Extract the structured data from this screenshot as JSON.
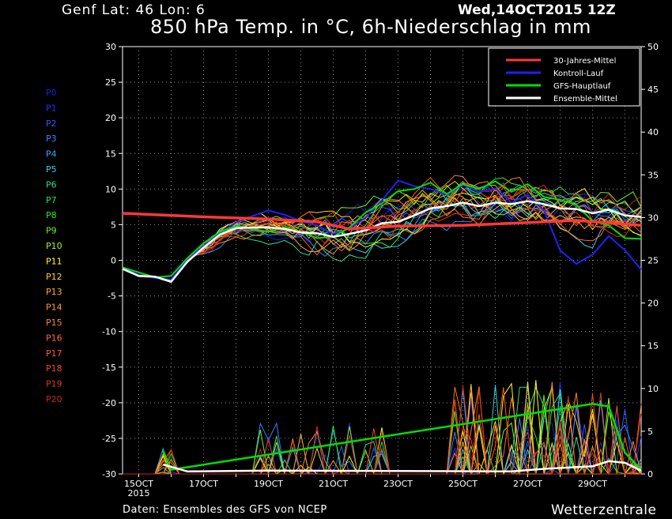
{
  "header": {
    "location": "Genf  Lat: 46 Lon: 6",
    "date": "Wed,14OCT2015 12Z",
    "title": "850 hPa Temp. in °C, 6h-Niederschlag in mm",
    "footer": "Daten: Ensembles des GFS von NCEP",
    "brand": "Wetterzentrale"
  },
  "colors": {
    "background": "#000000",
    "grid": "#909090",
    "clim": "#ff3838",
    "control": "#2020ff",
    "main": "#00e000",
    "mean": "#ffffff"
  },
  "members": [
    {
      "label": "P0",
      "color": "#2020d8"
    },
    {
      "label": "P1",
      "color": "#2030ff"
    },
    {
      "label": "P2",
      "color": "#2a5cff"
    },
    {
      "label": "P3",
      "color": "#2f86ff"
    },
    {
      "label": "P4",
      "color": "#30aaff"
    },
    {
      "label": "P5",
      "color": "#35d0e8"
    },
    {
      "label": "P6",
      "color": "#30d890"
    },
    {
      "label": "P7",
      "color": "#20e060"
    },
    {
      "label": "P8",
      "color": "#30e830"
    },
    {
      "label": "P9",
      "color": "#70f020"
    },
    {
      "label": "P10",
      "color": "#a8f020"
    },
    {
      "label": "P11",
      "color": "#ffff20"
    },
    {
      "label": "P12",
      "color": "#ffd020"
    },
    {
      "label": "P13",
      "color": "#ffb020"
    },
    {
      "label": "P14",
      "color": "#ff9828"
    },
    {
      "label": "P15",
      "color": "#ff8030"
    },
    {
      "label": "P16",
      "color": "#ff6a28"
    },
    {
      "label": "P17",
      "color": "#ff5a20"
    },
    {
      "label": "P18",
      "color": "#f04818"
    },
    {
      "label": "P19",
      "color": "#e03818"
    },
    {
      "label": "P20",
      "color": "#c82818"
    }
  ],
  "chart_data": {
    "type": "line",
    "title": "850 hPa Temp. in °C, 6h-Niederschlag in mm",
    "x_ticks": [
      "15OCT",
      "17OCT",
      "19OCT",
      "21OCT",
      "23OCT",
      "25OCT",
      "27OCT",
      "29OCT"
    ],
    "x_tick_sub": "2015",
    "x_range_days": [
      14.5,
      30.5
    ],
    "step_hours": 6,
    "ylim_left": [
      -30,
      30
    ],
    "yticks_left": [
      -30,
      -25,
      -20,
      -15,
      -10,
      -5,
      0,
      5,
      10,
      15,
      20,
      25,
      30
    ],
    "ylabel_left": "",
    "ylim_right": [
      0,
      50
    ],
    "yticks_right": [
      0,
      5,
      10,
      15,
      20,
      25,
      30,
      35,
      40,
      45,
      50
    ],
    "ylabel_right": "",
    "grid": true,
    "legend_position": "top-right",
    "legend": [
      "30-Jahres-Mittel",
      "Kontroll-Lauf",
      "GFS-Hauptlauf",
      "Ensemble-Mittel"
    ],
    "climate_mean": {
      "x": [
        14.5,
        17,
        19,
        20.5,
        21.5,
        23,
        25,
        27,
        28.5,
        30.5
      ],
      "y": [
        6.6,
        6.1,
        5.8,
        5.4,
        4.4,
        4.8,
        4.9,
        5.3,
        5.6,
        4.9
      ]
    },
    "ensemble_mean": {
      "x": [
        14.5,
        15,
        15.5,
        16,
        16.5,
        17,
        17.5,
        18,
        18.5,
        19,
        19.5,
        20,
        20.5,
        21,
        21.5,
        22,
        22.5,
        23,
        23.5,
        24,
        24.5,
        25,
        25.5,
        26,
        26.5,
        27,
        27.5,
        28,
        28.5,
        29,
        29.5,
        30,
        30.5
      ],
      "y": [
        -1.2,
        -2.2,
        -2.3,
        -3.0,
        -0.2,
        1.8,
        3.6,
        4.5,
        4.6,
        4.6,
        4.4,
        3.9,
        3.8,
        3.3,
        3.7,
        4.2,
        5.2,
        5.4,
        6.3,
        7.3,
        7.6,
        8.1,
        7.6,
        8.1,
        7.9,
        8.3,
        7.9,
        7.3,
        7.2,
        6.6,
        7.1,
        6.3,
        6.1
      ]
    },
    "control_run": {
      "x": [
        14.5,
        15,
        15.5,
        16,
        16.5,
        17,
        17.5,
        18,
        18.5,
        19,
        19.5,
        20,
        20.5,
        21,
        21.5,
        22,
        22.5,
        23,
        23.5,
        24,
        24.5,
        25,
        25.5,
        26,
        26.5,
        27,
        27.5,
        28,
        28.5,
        29,
        29.5,
        30,
        30.5
      ],
      "y": [
        -1.1,
        -2.0,
        -2.5,
        -2.7,
        0.1,
        2.0,
        3.8,
        5.3,
        6.2,
        7.0,
        6.4,
        5.5,
        4.9,
        3.7,
        4.4,
        6.0,
        8.4,
        11.2,
        10.4,
        10.0,
        9.2,
        10.6,
        9.6,
        10.1,
        8.1,
        9.2,
        7.0,
        1.4,
        -0.5,
        0.8,
        3.4,
        1.4,
        -1.3
      ]
    },
    "main_run": {
      "x": [
        14.5,
        15,
        15.5,
        16,
        16.5,
        17,
        17.5,
        18,
        18.5,
        19,
        19.5,
        20,
        20.5,
        21,
        21.5,
        22,
        22.5,
        23,
        23.5,
        24,
        24.5,
        25,
        25.5,
        26,
        26.5,
        27,
        27.5,
        28,
        28.5,
        29,
        29.5,
        30,
        30.5
      ],
      "y": [
        -1.0,
        -1.7,
        -2.4,
        -2.2,
        0.3,
        2.4,
        4.0,
        4.8,
        4.4,
        4.0,
        4.6,
        4.0,
        3.1,
        3.3,
        4.6,
        6.7,
        8.0,
        9.7,
        10.0,
        10.9,
        9.3,
        10.7,
        10.0,
        11.1,
        9.6,
        10.7,
        8.9,
        8.5,
        7.8,
        5.5,
        4.9,
        3.1,
        3.0
      ]
    },
    "precip_main_mm": {
      "x": [
        15.75,
        16,
        29,
        29.5,
        30,
        30.5
      ],
      "y": [
        2.7,
        0.5,
        8.2,
        7.9,
        2.5,
        0.5
      ]
    },
    "precip_mean_mm": {
      "x": [
        15.75,
        16.5,
        19,
        26.5,
        27.5,
        29,
        29.5,
        30,
        30.5
      ],
      "y": [
        1.1,
        0.3,
        0.4,
        0.3,
        0.6,
        0.9,
        1.5,
        1.3,
        0.4
      ]
    }
  }
}
